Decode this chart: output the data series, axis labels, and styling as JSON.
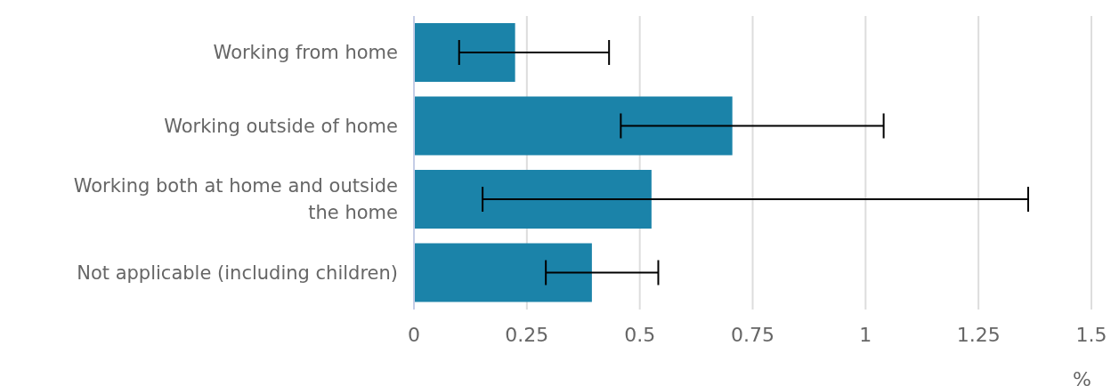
{
  "chart_data": {
    "type": "bar",
    "orientation": "horizontal",
    "xlabel": "%",
    "categories": [
      "Working from home",
      "Working outside of home",
      "Working both at home and outside the home",
      "Not applicable (including children)"
    ],
    "values": [
      0.224,
      0.705,
      0.526,
      0.394
    ],
    "errors": [
      [
        0.1,
        0.432
      ],
      [
        0.458,
        1.04
      ],
      [
        0.152,
        1.36
      ],
      [
        0.292,
        0.541
      ]
    ],
    "color": "#1b83a9",
    "xlim": [
      0,
      1.5
    ],
    "xticks": [
      0,
      0.25,
      0.5,
      0.75,
      1,
      1.25,
      1.5
    ],
    "grid": "x",
    "legend": false
  }
}
